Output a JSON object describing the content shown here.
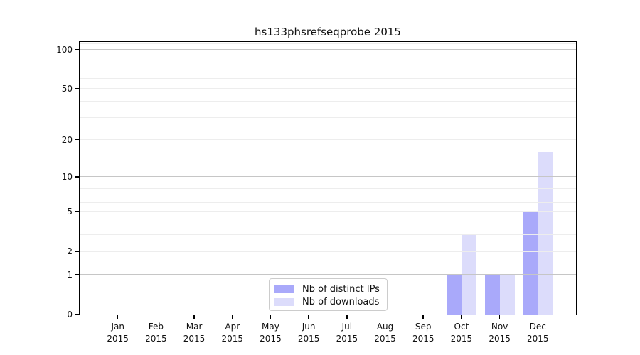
{
  "figure": {
    "background": "#ffffff"
  },
  "chart_data": {
    "type": "bar",
    "title": "hs133phsrefseqprobe 2015",
    "categories": [
      "Jan",
      "Feb",
      "Mar",
      "Apr",
      "May",
      "Jun",
      "Jul",
      "Aug",
      "Sep",
      "Oct",
      "Nov",
      "Dec"
    ],
    "category_year": "2015",
    "x_tick_labels": [
      "Jan 2015",
      "Feb 2015",
      "Mar 2015",
      "Apr 2015",
      "May 2015",
      "Jun 2015",
      "Jul 2015",
      "Aug 2015",
      "Sep 2015",
      "Oct 2015",
      "Nov 2015",
      "Dec 2015"
    ],
    "series": [
      {
        "name": "Nb of distinct IPs",
        "key": "distinct-ips",
        "color": "#a9a9fa",
        "values": [
          0,
          0,
          0,
          0,
          0,
          0,
          0,
          0,
          0,
          1,
          1,
          5
        ]
      },
      {
        "name": "Nb of downloads",
        "key": "downloads",
        "color": "#dcdcfb",
        "values": [
          0,
          0,
          0,
          0,
          0,
          0,
          0,
          0,
          0,
          3,
          1,
          16
        ]
      }
    ],
    "yscale": "log1p",
    "ylim": [
      0,
      114
    ],
    "yticks": [
      0,
      1,
      2,
      5,
      10,
      20,
      50,
      100
    ],
    "ygrid_major": [
      1,
      10,
      100
    ],
    "ygrid_minor": [
      2,
      3,
      4,
      5,
      6,
      7,
      8,
      9,
      20,
      30,
      40,
      50,
      60,
      70,
      80,
      90,
      110
    ],
    "grid": "horizontal major+minor",
    "legend_position": "lower center",
    "colors": {
      "grid_major": "#c6c6c6",
      "grid_minor": "#ededed",
      "spine": "#000000",
      "text": "#111111",
      "legend_border": "#cccccc"
    }
  }
}
